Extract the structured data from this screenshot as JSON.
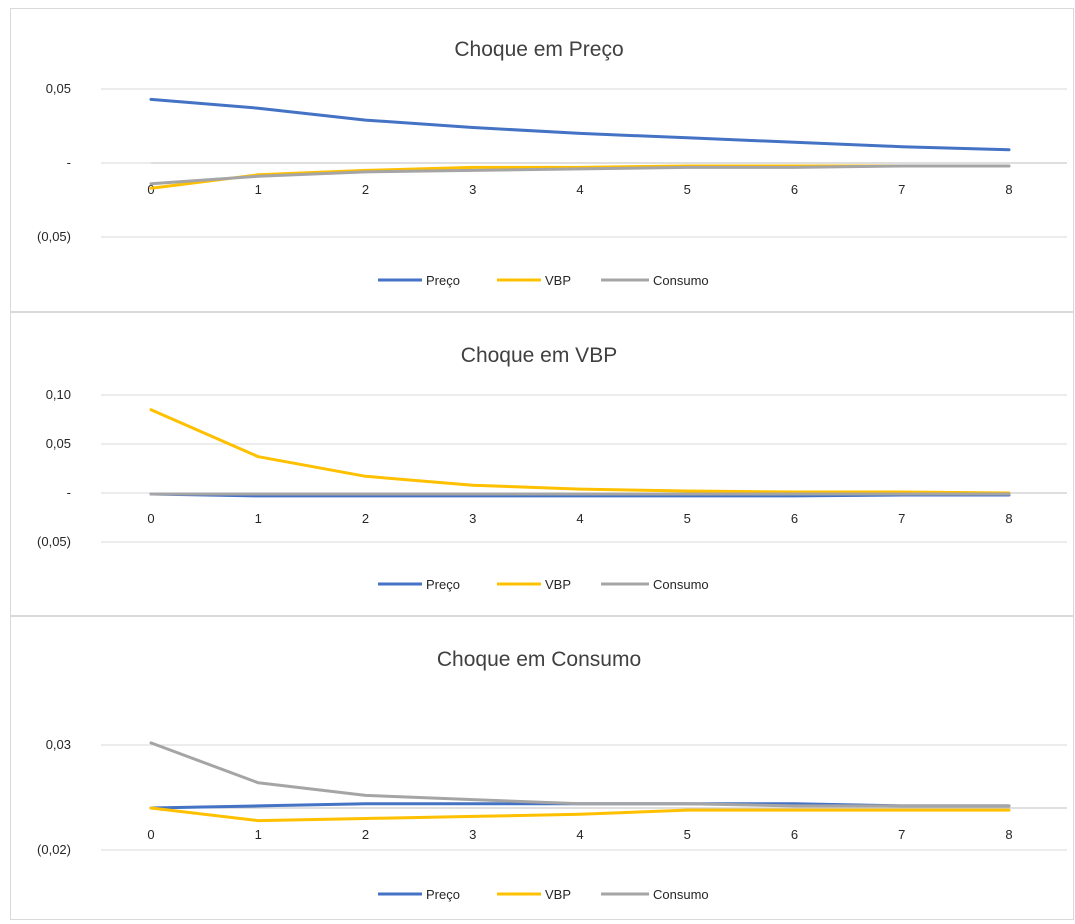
{
  "colors": {
    "preco": "#4472c4",
    "vbp": "#ffc000",
    "consumo": "#a5a5a5",
    "grid": "#d9d9d9",
    "axis": "#bfbfbf"
  },
  "chart_data": [
    {
      "type": "line",
      "title": "Choque em Preço",
      "x": [
        0,
        1,
        2,
        3,
        4,
        5,
        6,
        7,
        8
      ],
      "y_ticks": [
        -0.05,
        0,
        0.05
      ],
      "y_tick_labels": [
        "(0,05)",
        "-",
        "0,05"
      ],
      "ylim": [
        -0.05,
        0.05
      ],
      "grid": true,
      "legend": "bottom",
      "series": [
        {
          "name": "Preço",
          "color": "#4472c4",
          "values": [
            0.043,
            0.037,
            0.029,
            0.024,
            0.02,
            0.017,
            0.014,
            0.011,
            0.009
          ]
        },
        {
          "name": "VBP",
          "color": "#ffc000",
          "values": [
            -0.017,
            -0.008,
            -0.005,
            -0.003,
            -0.003,
            -0.002,
            -0.002,
            -0.002,
            -0.002
          ]
        },
        {
          "name": "Consumo",
          "color": "#a5a5a5",
          "values": [
            -0.014,
            -0.009,
            -0.006,
            -0.005,
            -0.004,
            -0.003,
            -0.003,
            -0.002,
            -0.002
          ]
        }
      ]
    },
    {
      "type": "line",
      "title": "Choque em VBP",
      "x": [
        0,
        1,
        2,
        3,
        4,
        5,
        6,
        7,
        8
      ],
      "y_ticks": [
        -0.05,
        0,
        0.05,
        0.1
      ],
      "y_tick_labels": [
        "(0,05)",
        "-",
        "0,05",
        "0,10"
      ],
      "ylim": [
        -0.05,
        0.1
      ],
      "grid": true,
      "legend": "bottom",
      "series": [
        {
          "name": "Preço",
          "color": "#4472c4",
          "values": [
            -0.001,
            -0.003,
            -0.003,
            -0.003,
            -0.003,
            -0.003,
            -0.003,
            -0.002,
            -0.002
          ]
        },
        {
          "name": "VBP",
          "color": "#ffc000",
          "values": [
            0.085,
            0.037,
            0.017,
            0.008,
            0.004,
            0.002,
            0.001,
            0.001,
            0.0
          ]
        },
        {
          "name": "Consumo",
          "color": "#a5a5a5",
          "values": [
            -0.001,
            -0.001,
            -0.001,
            -0.001,
            -0.001,
            -0.001,
            -0.001,
            -0.001,
            -0.001
          ]
        }
      ]
    },
    {
      "type": "line",
      "title": "Choque em Consumo",
      "x": [
        0,
        1,
        2,
        3,
        4,
        5,
        6,
        7,
        8
      ],
      "y_ticks": [
        -0.02,
        0.03
      ],
      "y_tick_labels": [
        "(0,02)",
        "0,03"
      ],
      "ylim": [
        -0.02,
        0.05
      ],
      "grid": true,
      "legend": "bottom",
      "series": [
        {
          "name": "Preço",
          "color": "#4472c4",
          "values": [
            0.0,
            0.001,
            0.002,
            0.002,
            0.002,
            0.002,
            0.002,
            0.001,
            0.001
          ]
        },
        {
          "name": "VBP",
          "color": "#ffc000",
          "values": [
            0.0,
            -0.006,
            -0.005,
            -0.004,
            -0.003,
            -0.001,
            -0.001,
            -0.001,
            -0.001
          ]
        },
        {
          "name": "Consumo",
          "color": "#a5a5a5",
          "values": [
            0.031,
            0.012,
            0.006,
            0.004,
            0.002,
            0.002,
            0.001,
            0.001,
            0.001
          ]
        }
      ]
    }
  ]
}
